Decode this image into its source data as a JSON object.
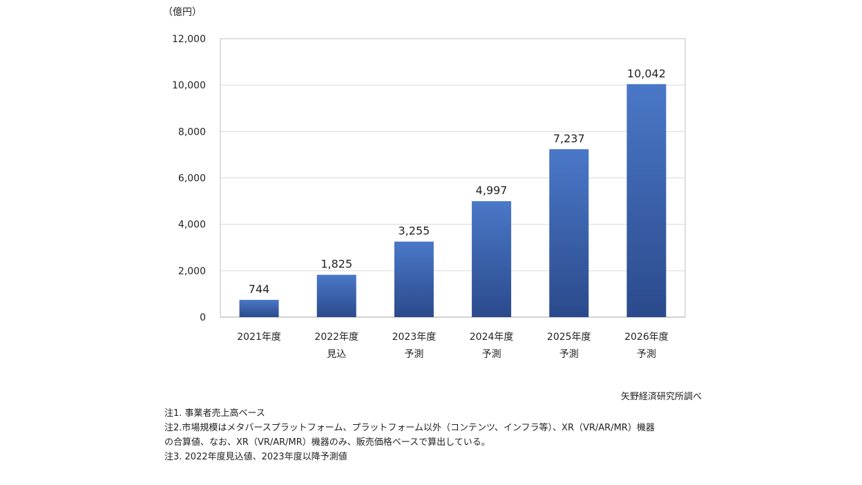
{
  "chart_data": {
    "type": "bar",
    "unit": "（億円）",
    "categories": [
      [
        "2021年度"
      ],
      [
        "2022年度",
        "見込"
      ],
      [
        "2023年度",
        "予測"
      ],
      [
        "2024年度",
        "予測"
      ],
      [
        "2025年度",
        "予測"
      ],
      [
        "2026年度",
        "予測"
      ]
    ],
    "values": [
      744,
      1825,
      3255,
      4997,
      7237,
      10042
    ],
    "value_labels": [
      "744",
      "1,825",
      "3,255",
      "4,997",
      "7,237",
      "10,042"
    ],
    "ylim": [
      0,
      12000
    ],
    "yticks": [
      0,
      2000,
      4000,
      6000,
      8000,
      10000,
      12000
    ],
    "ytick_labels": [
      "0",
      "2,000",
      "4,000",
      "6,000",
      "8,000",
      "10,000",
      "12,000"
    ],
    "grid": true,
    "legend": "none"
  },
  "colors": {
    "bar_top": "#4a78c8",
    "bar_bottom": "#2b4a8c",
    "grid": "#d9d9d9",
    "frame": "#bfbfbf"
  },
  "source": "矢野経済研究所調べ",
  "notes": [
    "注1. 事業者売上高ベース",
    "注2.市場規模はメタバースプラットフォーム、プラットフォーム以外（コンテンツ、インフラ等）、XR（VR/AR/MR）機器",
    "の合算値、なお、XR（VR/AR/MR）機器のみ、販売価格ベースで算出している。",
    "注3. 2022年度見込値、2023年度以降予測値"
  ]
}
